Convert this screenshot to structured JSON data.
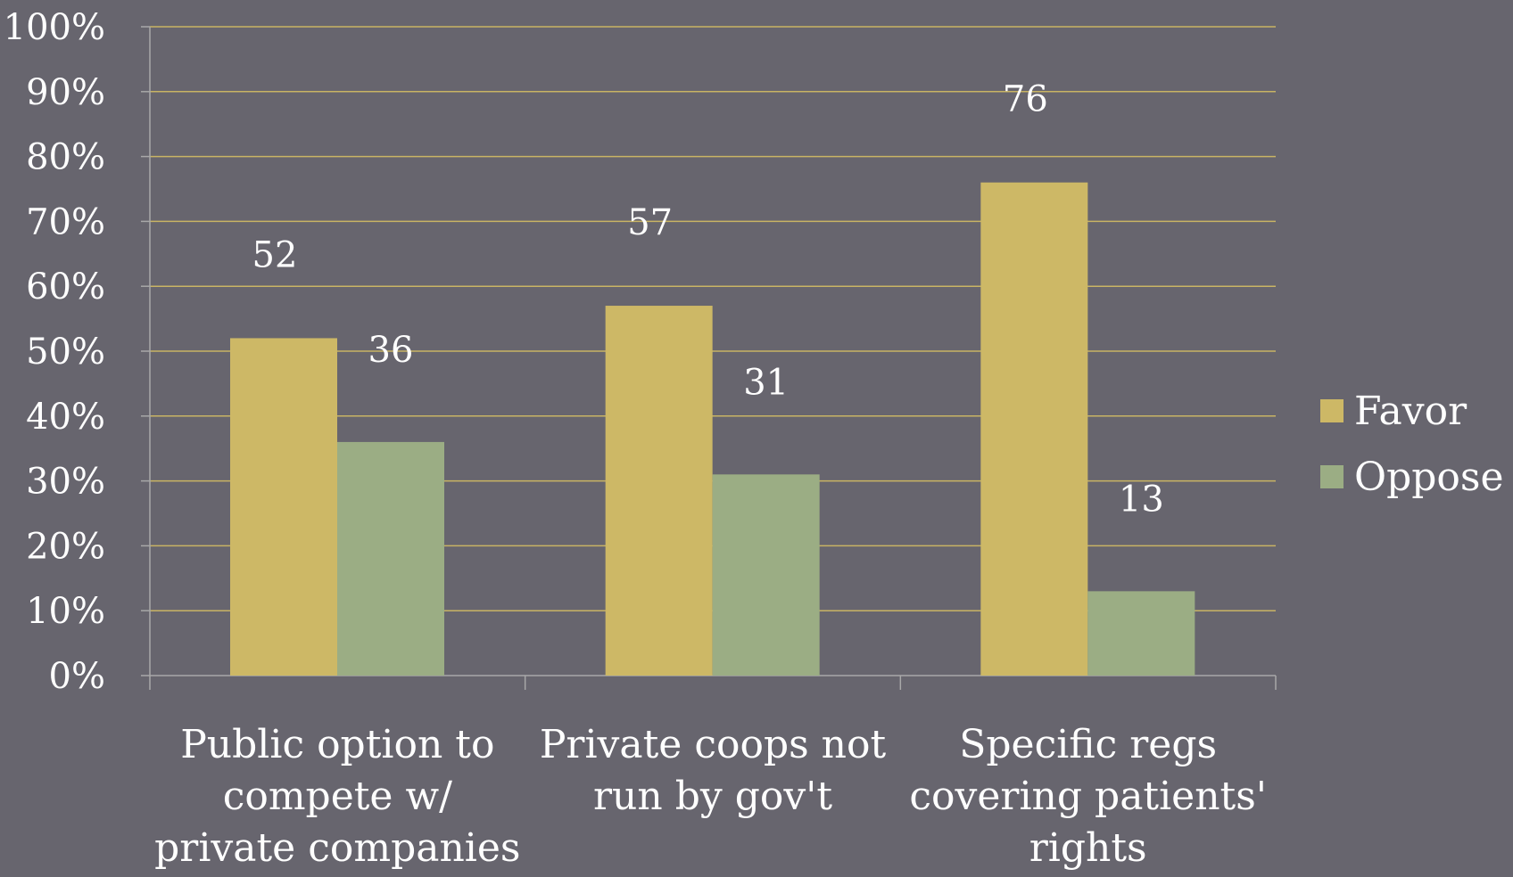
{
  "chart_data": {
    "type": "bar",
    "categories": [
      [
        "Public option to",
        "compete w/",
        "private companies"
      ],
      [
        "Private coops not",
        "run by gov't"
      ],
      [
        "Specific regs",
        "covering patients'",
        "rights"
      ]
    ],
    "series": [
      {
        "name": "Favor",
        "values": [
          52,
          57,
          76
        ],
        "labels": [
          "52",
          "57",
          "76"
        ],
        "color": "#cdb866"
      },
      {
        "name": "Oppose",
        "values": [
          36,
          31,
          13
        ],
        "labels": [
          "36",
          "31",
          "13"
        ],
        "color": "#9bad84"
      }
    ],
    "yticks": [
      "0%",
      "10%",
      "20%",
      "30%",
      "40%",
      "50%",
      "60%",
      "70%",
      "80%",
      "90%",
      "100%"
    ],
    "ylim": [
      0,
      100
    ],
    "grid": true,
    "gridColor": "#c8b464",
    "legend": "right"
  }
}
